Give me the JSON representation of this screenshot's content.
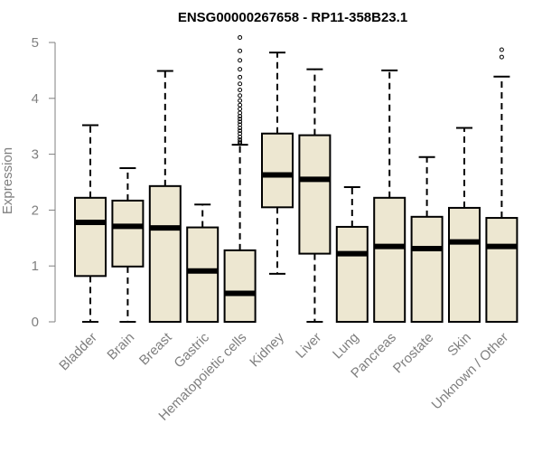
{
  "chart_data": {
    "type": "boxplot",
    "title": "ENSG00000267658 - RP11-358B23.1",
    "xlabel": "",
    "ylabel": "Expression",
    "ylim": [
      0,
      5
    ],
    "yticks": [
      0,
      1,
      2,
      3,
      4,
      5
    ],
    "grid": false,
    "legend": "none",
    "colors": {
      "box_fill": "#ede7d1",
      "stroke": "#000000",
      "axis": "#7f7f7f"
    },
    "categories": [
      "Bladder",
      "Brain",
      "Breast",
      "Gastric",
      "Hematopoietic cells",
      "Kidney",
      "Liver",
      "Lung",
      "Pancreas",
      "Prostate",
      "Skin",
      "Unknown / Other"
    ],
    "boxes": [
      {
        "category": "Bladder",
        "whisker_low": 0.0,
        "q1": 0.82,
        "median": 1.78,
        "q3": 2.22,
        "whisker_high": 3.52,
        "outliers": []
      },
      {
        "category": "Brain",
        "whisker_low": 0.0,
        "q1": 0.99,
        "median": 1.71,
        "q3": 2.17,
        "whisker_high": 2.75,
        "outliers": []
      },
      {
        "category": "Breast",
        "whisker_low": 0.0,
        "q1": 0.0,
        "median": 1.68,
        "q3": 2.43,
        "whisker_high": 4.49,
        "outliers": []
      },
      {
        "category": "Gastric",
        "whisker_low": 0.0,
        "q1": 0.0,
        "median": 0.91,
        "q3": 1.69,
        "whisker_high": 2.1,
        "outliers": []
      },
      {
        "category": "Hematopoietic cells",
        "whisker_low": 0.0,
        "q1": 0.0,
        "median": 0.51,
        "q3": 1.28,
        "whisker_high": 3.17,
        "outliers": [
          3.19,
          3.22,
          3.26,
          3.31,
          3.37,
          3.42,
          3.47,
          3.53,
          3.58,
          3.63,
          3.68,
          3.74,
          3.81,
          3.88,
          3.96,
          4.05,
          4.15,
          4.26,
          4.38,
          4.52,
          4.68,
          4.85,
          5.09
        ]
      },
      {
        "category": "Kidney",
        "whisker_low": 0.86,
        "q1": 2.05,
        "median": 2.63,
        "q3": 3.37,
        "whisker_high": 4.82,
        "outliers": []
      },
      {
        "category": "Liver",
        "whisker_low": 0.0,
        "q1": 1.22,
        "median": 2.55,
        "q3": 3.34,
        "whisker_high": 4.52,
        "outliers": []
      },
      {
        "category": "Lung",
        "whisker_low": 0.0,
        "q1": 0.0,
        "median": 1.22,
        "q3": 1.7,
        "whisker_high": 2.41,
        "outliers": []
      },
      {
        "category": "Pancreas",
        "whisker_low": 0.0,
        "q1": 0.0,
        "median": 1.35,
        "q3": 2.22,
        "whisker_high": 4.5,
        "outliers": []
      },
      {
        "category": "Prostate",
        "whisker_low": 0.0,
        "q1": 0.0,
        "median": 1.31,
        "q3": 1.88,
        "whisker_high": 2.95,
        "outliers": []
      },
      {
        "category": "Skin",
        "whisker_low": 0.0,
        "q1": 0.0,
        "median": 1.43,
        "q3": 2.04,
        "whisker_high": 3.47,
        "outliers": []
      },
      {
        "category": "Unknown / Other",
        "whisker_low": 0.0,
        "q1": 0.0,
        "median": 1.35,
        "q3": 1.86,
        "whisker_high": 4.39,
        "outliers": [
          4.74,
          4.87
        ]
      }
    ]
  }
}
